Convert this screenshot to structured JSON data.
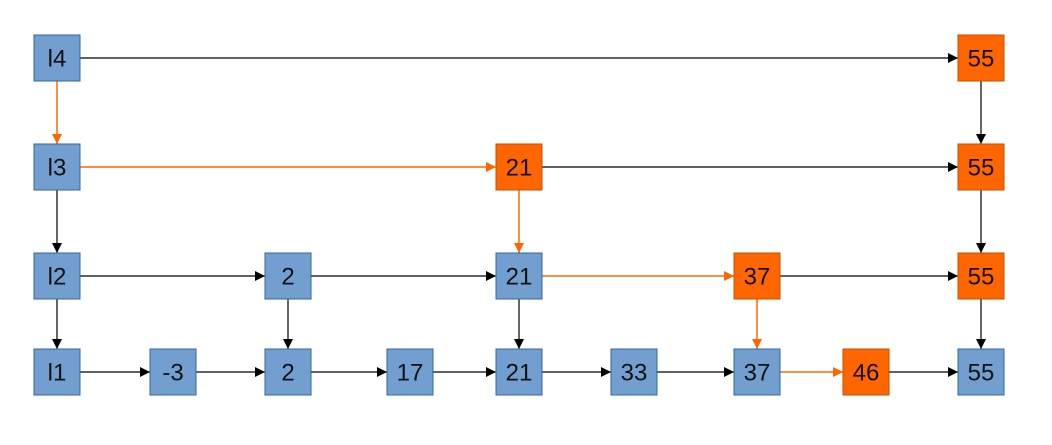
{
  "colors": {
    "node_default": "#729fcf",
    "node_default_border": "#3465a4",
    "node_highlight": "#ff6600",
    "node_highlight_border": "#c05000",
    "edge_default": "#000000",
    "edge_highlight": "#ff6600"
  },
  "nodes": [
    {
      "id": "l4",
      "label": "l4",
      "highlight": false
    },
    {
      "id": "l4_55",
      "label": "55",
      "highlight": true
    },
    {
      "id": "l3",
      "label": "l3",
      "highlight": false
    },
    {
      "id": "l3_21",
      "label": "21",
      "highlight": true
    },
    {
      "id": "l3_55",
      "label": "55",
      "highlight": true
    },
    {
      "id": "l2",
      "label": "l2",
      "highlight": false
    },
    {
      "id": "l2_2",
      "label": "2",
      "highlight": false
    },
    {
      "id": "l2_21",
      "label": "21",
      "highlight": false
    },
    {
      "id": "l2_37",
      "label": "37",
      "highlight": true
    },
    {
      "id": "l2_55",
      "label": "55",
      "highlight": true
    },
    {
      "id": "l1",
      "label": "l1",
      "highlight": false
    },
    {
      "id": "l1_m3",
      "label": "-3",
      "highlight": false
    },
    {
      "id": "l1_2",
      "label": "2",
      "highlight": false
    },
    {
      "id": "l1_17",
      "label": "17",
      "highlight": false
    },
    {
      "id": "l1_21",
      "label": "21",
      "highlight": false
    },
    {
      "id": "l1_33",
      "label": "33",
      "highlight": false
    },
    {
      "id": "l1_37",
      "label": "37",
      "highlight": false
    },
    {
      "id": "l1_46",
      "label": "46",
      "highlight": true
    },
    {
      "id": "l1_55",
      "label": "55",
      "highlight": false
    }
  ],
  "edges": [
    {
      "from": "l4",
      "to": "l4_55",
      "highlight": false
    },
    {
      "from": "l4",
      "to": "l3",
      "highlight": true
    },
    {
      "from": "l4_55",
      "to": "l3_55",
      "highlight": false
    },
    {
      "from": "l3",
      "to": "l3_21",
      "highlight": true
    },
    {
      "from": "l3_21",
      "to": "l3_55",
      "highlight": false
    },
    {
      "from": "l3",
      "to": "l2",
      "highlight": false
    },
    {
      "from": "l3_21",
      "to": "l2_21",
      "highlight": true
    },
    {
      "from": "l3_55",
      "to": "l2_55",
      "highlight": false
    },
    {
      "from": "l2",
      "to": "l2_2",
      "highlight": false
    },
    {
      "from": "l2_2",
      "to": "l2_21",
      "highlight": false
    },
    {
      "from": "l2_21",
      "to": "l2_37",
      "highlight": true
    },
    {
      "from": "l2_37",
      "to": "l2_55",
      "highlight": false
    },
    {
      "from": "l2",
      "to": "l1",
      "highlight": false
    },
    {
      "from": "l2_2",
      "to": "l1_2",
      "highlight": false
    },
    {
      "from": "l2_21",
      "to": "l1_21",
      "highlight": false
    },
    {
      "from": "l2_37",
      "to": "l1_37",
      "highlight": true
    },
    {
      "from": "l2_55",
      "to": "l1_55",
      "highlight": false
    },
    {
      "from": "l1",
      "to": "l1_m3",
      "highlight": false
    },
    {
      "from": "l1_m3",
      "to": "l1_2",
      "highlight": false
    },
    {
      "from": "l1_2",
      "to": "l1_17",
      "highlight": false
    },
    {
      "from": "l1_17",
      "to": "l1_21",
      "highlight": false
    },
    {
      "from": "l1_21",
      "to": "l1_33",
      "highlight": false
    },
    {
      "from": "l1_33",
      "to": "l1_37",
      "highlight": false
    },
    {
      "from": "l1_37",
      "to": "l1_46",
      "highlight": true
    },
    {
      "from": "l1_46",
      "to": "l1_55",
      "highlight": false
    }
  ]
}
